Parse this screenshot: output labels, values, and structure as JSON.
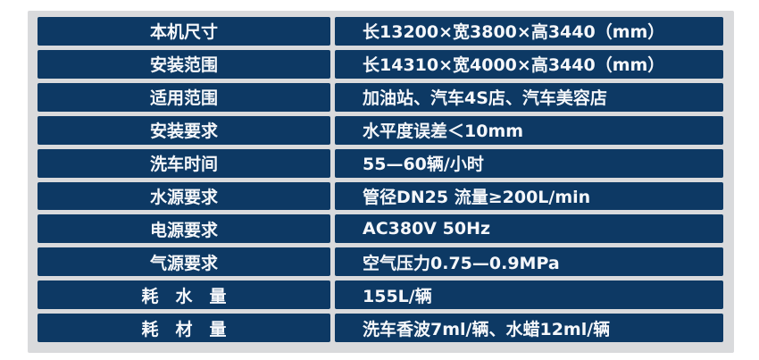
{
  "page": {
    "background_color": "#ffffff"
  },
  "panel": {
    "background_color": "#d9dadc"
  },
  "table": {
    "cell_background_color": "#0d3964",
    "text_color": "#f5f7fa",
    "rows": [
      {
        "label": "本机尺寸",
        "value": "长13200×宽3800×高3440（mm）"
      },
      {
        "label": "安装范围",
        "value": "长14310×宽4000×高3440（mm）"
      },
      {
        "label": "适用范围",
        "value": "加油站、汽车4S店、汽车美容店"
      },
      {
        "label": "安装要求",
        "value": "水平度误差＜10mm"
      },
      {
        "label": "洗车时间",
        "value": "55—60辆/小时"
      },
      {
        "label": "水源要求",
        "value": "管径DN25 流量≥200L/min"
      },
      {
        "label": "电源要求",
        "value": "AC380V 50Hz"
      },
      {
        "label": "气源要求",
        "value": "空气压力0.75—0.9MPa"
      },
      {
        "label": "耗　水　量",
        "value": "155L/辆"
      },
      {
        "label": "耗　材　量",
        "value": "洗车香波7ml/辆、水蜡12ml/辆"
      }
    ]
  }
}
